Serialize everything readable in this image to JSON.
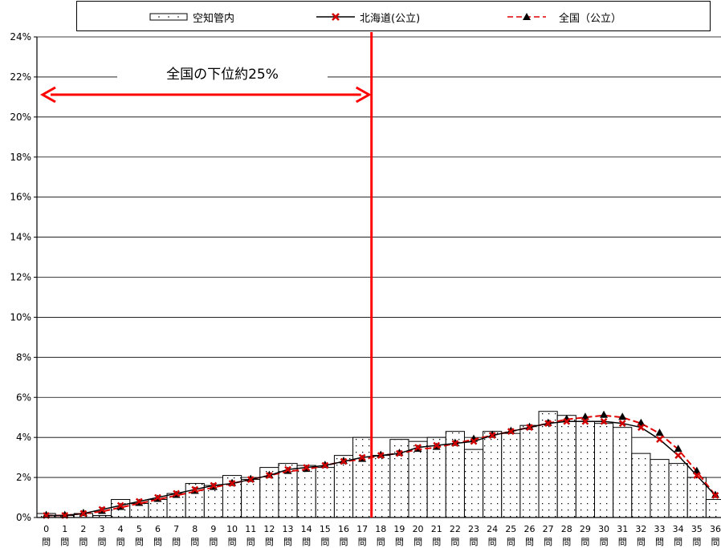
{
  "legend": {
    "item1": "空知管内",
    "item2": "北海道(公立)",
    "item3": "全国（公立）"
  },
  "annotation": "全国の下位約25%",
  "colors": {
    "bar_fill": "#ffffff",
    "bar_stroke": "#000000",
    "hokkaido_line": "#000000",
    "hokkaido_marker": "#d00000",
    "zenkoku_line": "#e00000",
    "zenkoku_marker": "#000000",
    "annotation_red": "#ff0000"
  },
  "chart_data": {
    "type": "bar",
    "xlabel": "",
    "ylabel": "",
    "ylim": [
      0,
      24
    ],
    "y_unit": "%",
    "y_ticks": [
      "0%",
      "2%",
      "4%",
      "6%",
      "8%",
      "10%",
      "12%",
      "14%",
      "16%",
      "18%",
      "20%",
      "22%",
      "24%"
    ],
    "categories": [
      "0問",
      "1問",
      "2問",
      "3問",
      "4問",
      "5問",
      "6問",
      "7問",
      "8問",
      "9問",
      "10問",
      "11問",
      "12問",
      "13問",
      "14問",
      "15問",
      "16問",
      "17問",
      "18問",
      "19問",
      "20問",
      "21問",
      "22問",
      "23問",
      "24問",
      "25問",
      "26問",
      "27問",
      "28問",
      "29問",
      "30問",
      "31問",
      "32問",
      "33問",
      "34問",
      "35問",
      "36問"
    ],
    "series": [
      {
        "name": "空知管内",
        "kind": "bar",
        "values": [
          0.2,
          0.1,
          0.2,
          0.1,
          0.9,
          0.7,
          0.9,
          1.2,
          1.7,
          1.6,
          2.1,
          1.9,
          2.5,
          2.7,
          2.6,
          2.5,
          3.1,
          4.0,
          3.1,
          3.9,
          3.8,
          4.0,
          4.3,
          3.4,
          4.3,
          4.2,
          4.6,
          5.3,
          5.1,
          4.8,
          4.7,
          4.5,
          3.2,
          2.9,
          2.7,
          2.0,
          0.9
        ]
      },
      {
        "name": "北海道(公立)",
        "kind": "line",
        "values": [
          0.1,
          0.1,
          0.2,
          0.4,
          0.6,
          0.8,
          1.0,
          1.2,
          1.4,
          1.6,
          1.7,
          1.9,
          2.1,
          2.4,
          2.5,
          2.6,
          2.8,
          3.0,
          3.1,
          3.2,
          3.5,
          3.6,
          3.7,
          3.8,
          4.1,
          4.3,
          4.5,
          4.7,
          4.8,
          4.8,
          4.8,
          4.7,
          4.5,
          3.9,
          3.1,
          2.1,
          1.1
        ]
      },
      {
        "name": "全国（公立）",
        "kind": "line",
        "values": [
          0.1,
          0.1,
          0.2,
          0.3,
          0.5,
          0.7,
          0.9,
          1.1,
          1.3,
          1.5,
          1.7,
          1.9,
          2.1,
          2.3,
          2.4,
          2.6,
          2.8,
          2.9,
          3.1,
          3.2,
          3.4,
          3.5,
          3.7,
          3.9,
          4.1,
          4.3,
          4.5,
          4.7,
          4.9,
          5.0,
          5.1,
          5.0,
          4.7,
          4.2,
          3.4,
          2.3,
          1.1
        ]
      }
    ],
    "annotation_line_after_category": "17問"
  }
}
